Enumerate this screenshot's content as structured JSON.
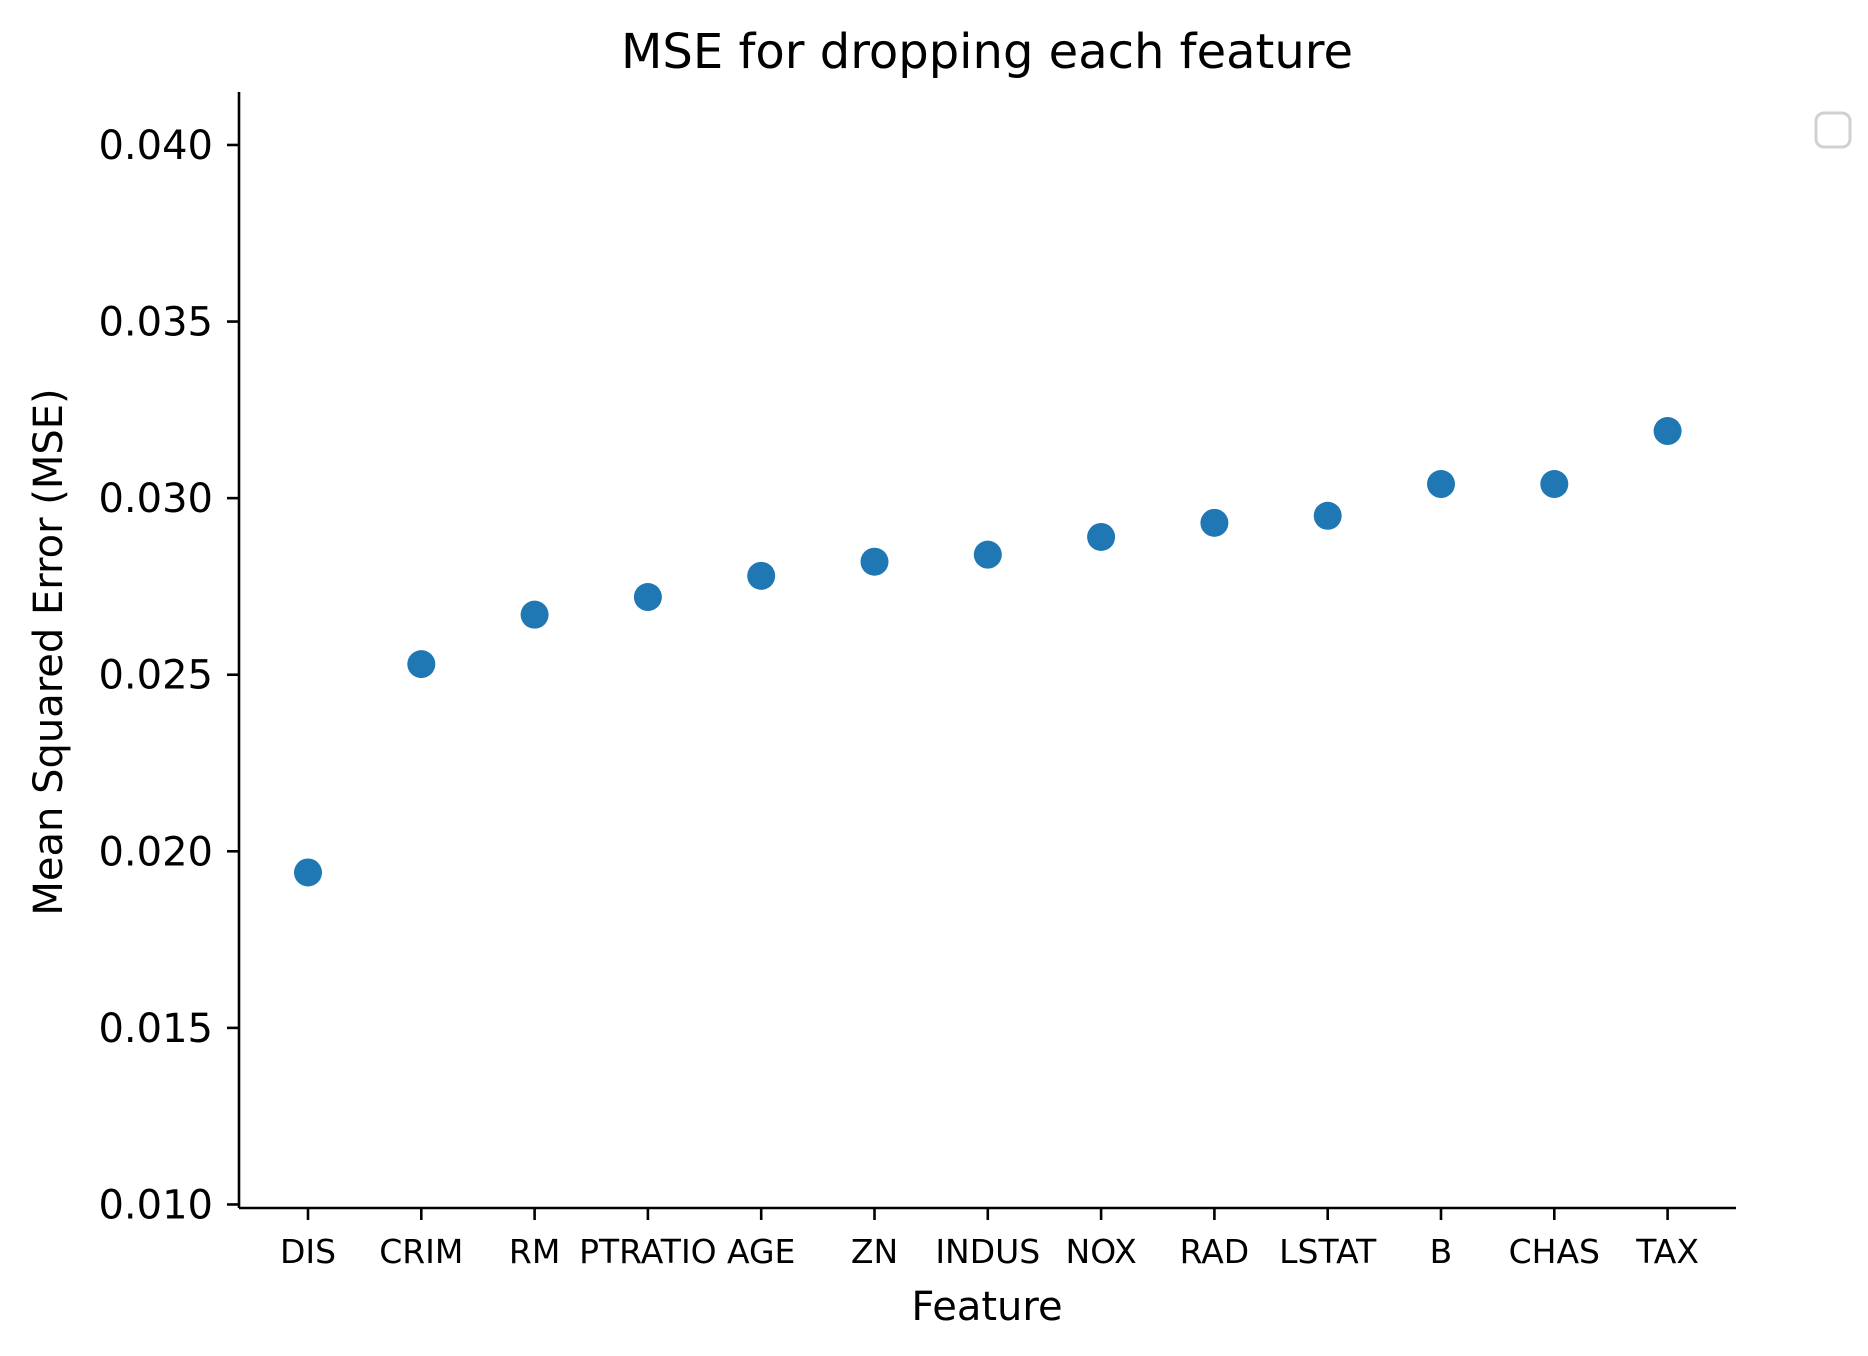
{
  "chart_data": {
    "type": "scatter",
    "title": "MSE for dropping each feature",
    "xlabel": "Feature",
    "ylabel": "Mean Squared Error (MSE)",
    "categories": [
      "DIS",
      "CRIM",
      "RM",
      "PTRATIO",
      "AGE",
      "ZN",
      "INDUS",
      "NOX",
      "RAD",
      "LSTAT",
      "B",
      "CHAS",
      "TAX"
    ],
    "values": [
      0.0194,
      0.0253,
      0.0267,
      0.0272,
      0.0278,
      0.0282,
      0.0284,
      0.0289,
      0.0293,
      0.0295,
      0.0304,
      0.0304,
      0.0319
    ],
    "ylim": [
      0.0099,
      0.0415
    ],
    "yticks": [
      "0.010",
      "0.015",
      "0.020",
      "0.025",
      "0.030",
      "0.035",
      "0.040"
    ],
    "grid": false,
    "legend": {
      "placement": "upper right, outside plot",
      "entries": []
    },
    "marker_color": "#1f77b4"
  }
}
